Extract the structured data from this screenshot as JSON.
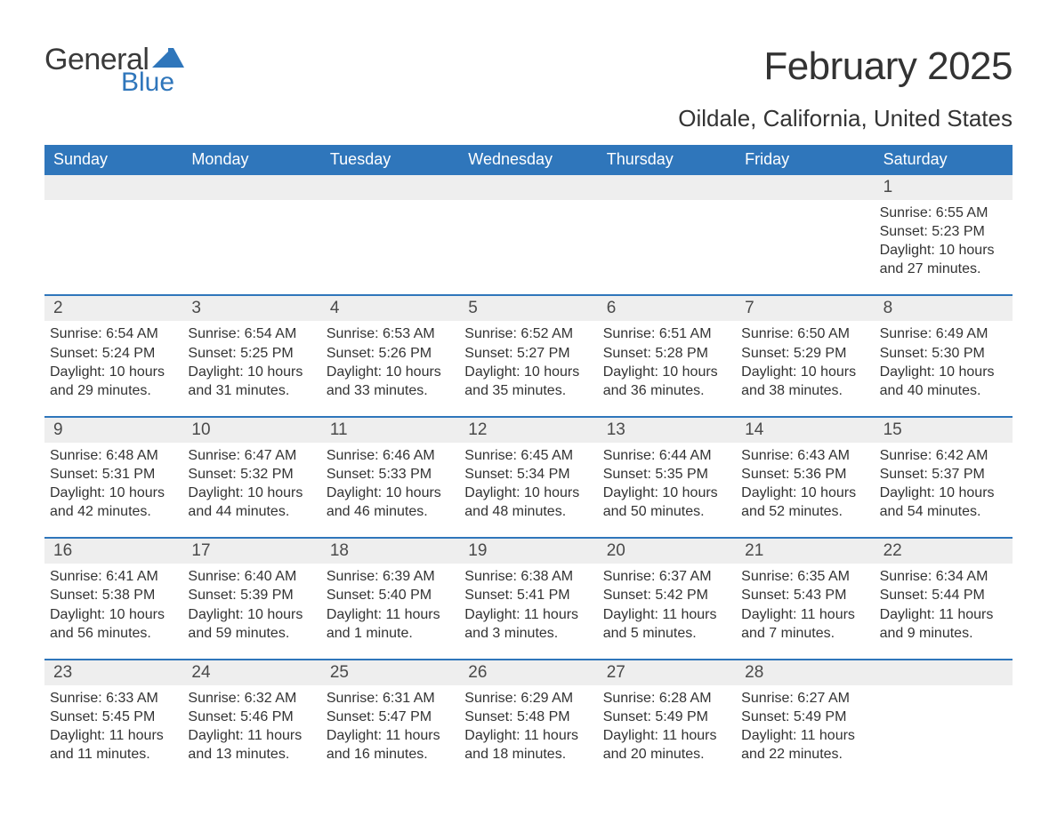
{
  "logo": {
    "text_general": "General",
    "text_blue": "Blue",
    "flag_color": "#2f76bb"
  },
  "header": {
    "month_title": "February 2025",
    "location": "Oildale, California, United States"
  },
  "colors": {
    "header_bg": "#2f76bb",
    "header_text": "#ffffff",
    "daynum_bg": "#eeeeee",
    "week_divider": "#2f76bb",
    "body_text": "#333333",
    "page_bg": "#ffffff"
  },
  "typography": {
    "month_title_fontsize": 44,
    "location_fontsize": 26,
    "dow_fontsize": 18,
    "daynum_fontsize": 19,
    "body_fontsize": 16
  },
  "dow": [
    "Sunday",
    "Monday",
    "Tuesday",
    "Wednesday",
    "Thursday",
    "Friday",
    "Saturday"
  ],
  "weeks": [
    [
      null,
      null,
      null,
      null,
      null,
      null,
      {
        "n": "1",
        "sunrise": "Sunrise: 6:55 AM",
        "sunset": "Sunset: 5:23 PM",
        "daylight": "Daylight: 10 hours and 27 minutes."
      }
    ],
    [
      {
        "n": "2",
        "sunrise": "Sunrise: 6:54 AM",
        "sunset": "Sunset: 5:24 PM",
        "daylight": "Daylight: 10 hours and 29 minutes."
      },
      {
        "n": "3",
        "sunrise": "Sunrise: 6:54 AM",
        "sunset": "Sunset: 5:25 PM",
        "daylight": "Daylight: 10 hours and 31 minutes."
      },
      {
        "n": "4",
        "sunrise": "Sunrise: 6:53 AM",
        "sunset": "Sunset: 5:26 PM",
        "daylight": "Daylight: 10 hours and 33 minutes."
      },
      {
        "n": "5",
        "sunrise": "Sunrise: 6:52 AM",
        "sunset": "Sunset: 5:27 PM",
        "daylight": "Daylight: 10 hours and 35 minutes."
      },
      {
        "n": "6",
        "sunrise": "Sunrise: 6:51 AM",
        "sunset": "Sunset: 5:28 PM",
        "daylight": "Daylight: 10 hours and 36 minutes."
      },
      {
        "n": "7",
        "sunrise": "Sunrise: 6:50 AM",
        "sunset": "Sunset: 5:29 PM",
        "daylight": "Daylight: 10 hours and 38 minutes."
      },
      {
        "n": "8",
        "sunrise": "Sunrise: 6:49 AM",
        "sunset": "Sunset: 5:30 PM",
        "daylight": "Daylight: 10 hours and 40 minutes."
      }
    ],
    [
      {
        "n": "9",
        "sunrise": "Sunrise: 6:48 AM",
        "sunset": "Sunset: 5:31 PM",
        "daylight": "Daylight: 10 hours and 42 minutes."
      },
      {
        "n": "10",
        "sunrise": "Sunrise: 6:47 AM",
        "sunset": "Sunset: 5:32 PM",
        "daylight": "Daylight: 10 hours and 44 minutes."
      },
      {
        "n": "11",
        "sunrise": "Sunrise: 6:46 AM",
        "sunset": "Sunset: 5:33 PM",
        "daylight": "Daylight: 10 hours and 46 minutes."
      },
      {
        "n": "12",
        "sunrise": "Sunrise: 6:45 AM",
        "sunset": "Sunset: 5:34 PM",
        "daylight": "Daylight: 10 hours and 48 minutes."
      },
      {
        "n": "13",
        "sunrise": "Sunrise: 6:44 AM",
        "sunset": "Sunset: 5:35 PM",
        "daylight": "Daylight: 10 hours and 50 minutes."
      },
      {
        "n": "14",
        "sunrise": "Sunrise: 6:43 AM",
        "sunset": "Sunset: 5:36 PM",
        "daylight": "Daylight: 10 hours and 52 minutes."
      },
      {
        "n": "15",
        "sunrise": "Sunrise: 6:42 AM",
        "sunset": "Sunset: 5:37 PM",
        "daylight": "Daylight: 10 hours and 54 minutes."
      }
    ],
    [
      {
        "n": "16",
        "sunrise": "Sunrise: 6:41 AM",
        "sunset": "Sunset: 5:38 PM",
        "daylight": "Daylight: 10 hours and 56 minutes."
      },
      {
        "n": "17",
        "sunrise": "Sunrise: 6:40 AM",
        "sunset": "Sunset: 5:39 PM",
        "daylight": "Daylight: 10 hours and 59 minutes."
      },
      {
        "n": "18",
        "sunrise": "Sunrise: 6:39 AM",
        "sunset": "Sunset: 5:40 PM",
        "daylight": "Daylight: 11 hours and 1 minute."
      },
      {
        "n": "19",
        "sunrise": "Sunrise: 6:38 AM",
        "sunset": "Sunset: 5:41 PM",
        "daylight": "Daylight: 11 hours and 3 minutes."
      },
      {
        "n": "20",
        "sunrise": "Sunrise: 6:37 AM",
        "sunset": "Sunset: 5:42 PM",
        "daylight": "Daylight: 11 hours and 5 minutes."
      },
      {
        "n": "21",
        "sunrise": "Sunrise: 6:35 AM",
        "sunset": "Sunset: 5:43 PM",
        "daylight": "Daylight: 11 hours and 7 minutes."
      },
      {
        "n": "22",
        "sunrise": "Sunrise: 6:34 AM",
        "sunset": "Sunset: 5:44 PM",
        "daylight": "Daylight: 11 hours and 9 minutes."
      }
    ],
    [
      {
        "n": "23",
        "sunrise": "Sunrise: 6:33 AM",
        "sunset": "Sunset: 5:45 PM",
        "daylight": "Daylight: 11 hours and 11 minutes."
      },
      {
        "n": "24",
        "sunrise": "Sunrise: 6:32 AM",
        "sunset": "Sunset: 5:46 PM",
        "daylight": "Daylight: 11 hours and 13 minutes."
      },
      {
        "n": "25",
        "sunrise": "Sunrise: 6:31 AM",
        "sunset": "Sunset: 5:47 PM",
        "daylight": "Daylight: 11 hours and 16 minutes."
      },
      {
        "n": "26",
        "sunrise": "Sunrise: 6:29 AM",
        "sunset": "Sunset: 5:48 PM",
        "daylight": "Daylight: 11 hours and 18 minutes."
      },
      {
        "n": "27",
        "sunrise": "Sunrise: 6:28 AM",
        "sunset": "Sunset: 5:49 PM",
        "daylight": "Daylight: 11 hours and 20 minutes."
      },
      {
        "n": "28",
        "sunrise": "Sunrise: 6:27 AM",
        "sunset": "Sunset: 5:49 PM",
        "daylight": "Daylight: 11 hours and 22 minutes."
      },
      null
    ]
  ]
}
